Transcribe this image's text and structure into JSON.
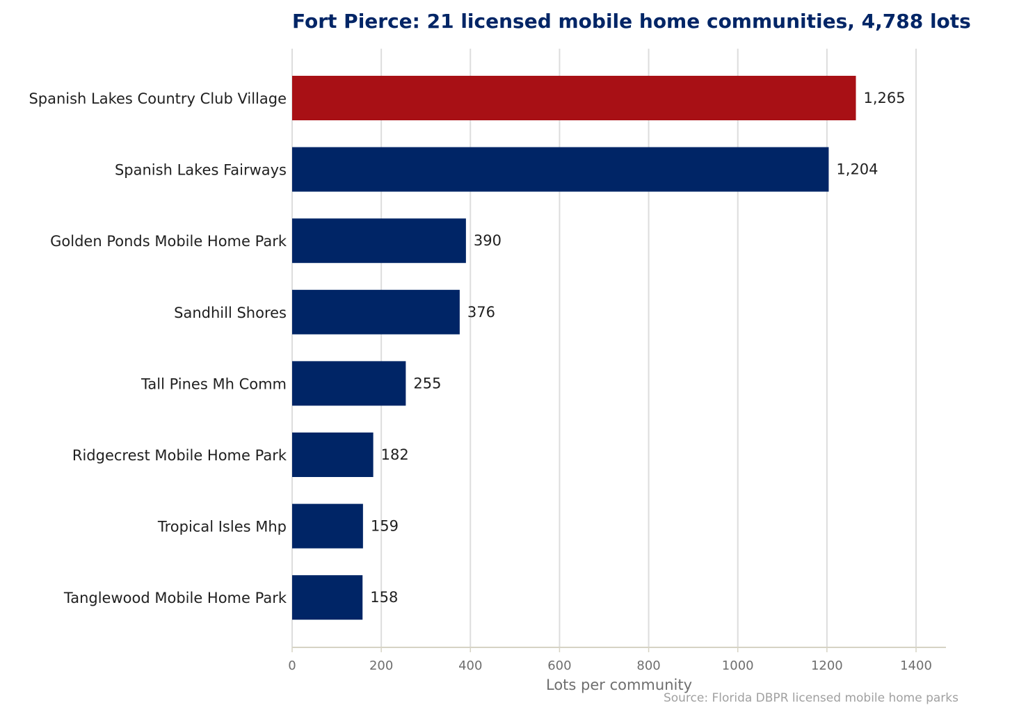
{
  "chart_data": {
    "type": "bar",
    "orientation": "horizontal",
    "title": "Fort Pierce: 21 licensed mobile home communities, 4,788 lots",
    "xlabel": "Lots per community",
    "ylabel": "",
    "source": "Source: Florida DBPR licensed mobile home parks",
    "xlim": [
      0,
      1465
    ],
    "xticks": [
      0,
      200,
      400,
      600,
      800,
      1000,
      1200,
      1400
    ],
    "grid": true,
    "categories": [
      "Spanish Lakes Country Club Village",
      "Spanish Lakes Fairways",
      "Golden Ponds Mobile Home Park",
      "Sandhill Shores",
      "Tall Pines Mh Comm",
      "Ridgecrest Mobile Home Park",
      "Tropical Isles Mhp",
      "Tanglewood Mobile Home Park"
    ],
    "values": [
      1265,
      1204,
      390,
      376,
      255,
      182,
      159,
      158
    ],
    "value_labels": [
      "1,265",
      "1,204",
      "390",
      "376",
      "255",
      "182",
      "159",
      "158"
    ],
    "highlight_index": 0
  },
  "colors": {
    "highlight": "#a81015",
    "bar": "#002566",
    "title": "#002566",
    "grid": "#dddddd",
    "axis": "#d6d3c4"
  }
}
